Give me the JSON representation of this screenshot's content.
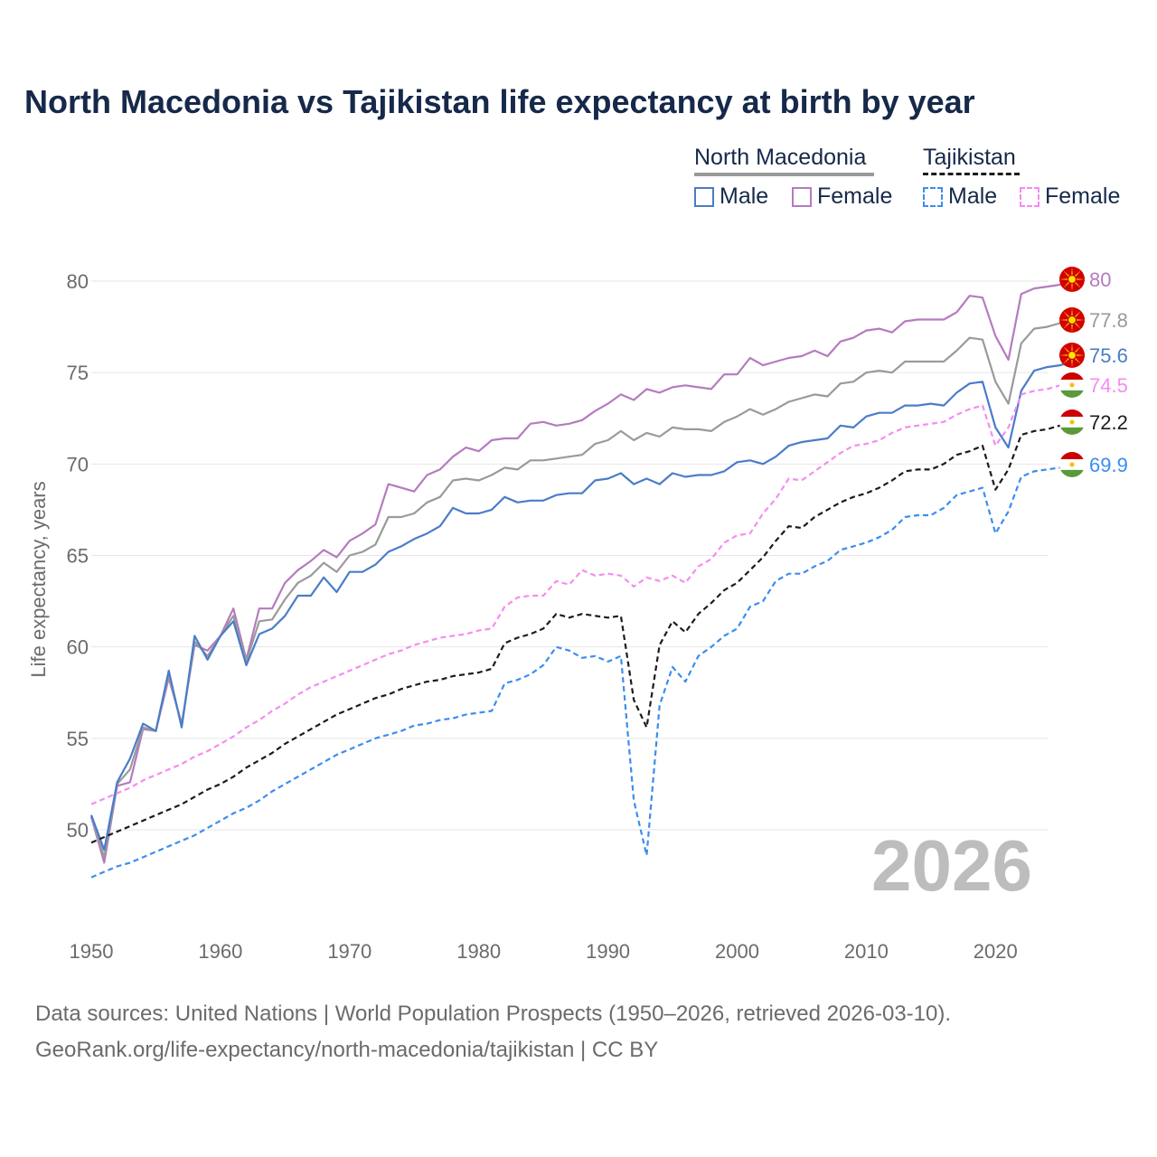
{
  "title": "North Macedonia vs Tajikistan life expectancy at birth by year",
  "legend": {
    "country_a": "North Macedonia",
    "country_b": "Tajikistan",
    "male_label": "Male",
    "female_label": "Female"
  },
  "year_badge": "2026",
  "footer": {
    "line1": "Data sources: United Nations | World Population Prospects (1950–2026, retrieved 2026-03-10).",
    "line2": "GeoRank.org/life-expectancy/north-macedonia/tajikistan | CC BY"
  },
  "colors": {
    "mk_male": "#4a7cc9",
    "mk_female": "#b57bbf",
    "mk_total": "#9a9a9a",
    "tj_male": "#3b8df0",
    "tj_female": "#f58cf0",
    "tj_total": "#1c1c1c",
    "grid": "#e6e6e6",
    "axis_text": "#6b6b6b"
  },
  "chart_data": {
    "type": "line",
    "title": "North Macedonia vs Tajikistan life expectancy at birth by year",
    "xlabel": "",
    "ylabel": "Life expectancy, years",
    "xlim": [
      1950,
      2026
    ],
    "ylim": [
      45,
      82
    ],
    "x_ticks": [
      1950,
      1960,
      1970,
      1980,
      1990,
      2000,
      2010,
      2020
    ],
    "y_ticks": [
      50,
      55,
      60,
      65,
      70,
      75,
      80
    ],
    "years": [
      1950,
      1951,
      1952,
      1953,
      1954,
      1955,
      1956,
      1957,
      1958,
      1959,
      1960,
      1961,
      1962,
      1963,
      1964,
      1965,
      1966,
      1967,
      1968,
      1969,
      1970,
      1971,
      1972,
      1973,
      1974,
      1975,
      1976,
      1977,
      1978,
      1979,
      1980,
      1981,
      1982,
      1983,
      1984,
      1985,
      1986,
      1987,
      1988,
      1989,
      1990,
      1991,
      1992,
      1993,
      1994,
      1995,
      1996,
      1997,
      1998,
      1999,
      2000,
      2001,
      2002,
      2003,
      2004,
      2005,
      2006,
      2007,
      2008,
      2009,
      2010,
      2011,
      2012,
      2013,
      2014,
      2015,
      2016,
      2017,
      2018,
      2019,
      2020,
      2021,
      2022,
      2023,
      2024,
      2025,
      2026
    ],
    "series": [
      {
        "name": "North Macedonia Female",
        "key": "mk_female",
        "dashed": false,
        "end_label": "80",
        "values": [
          50.7,
          48.2,
          52.4,
          52.6,
          55.5,
          55.4,
          58.3,
          55.8,
          60.1,
          59.8,
          60.6,
          62.1,
          59.3,
          62.1,
          62.1,
          63.5,
          64.2,
          64.7,
          65.3,
          64.9,
          65.8,
          66.2,
          66.7,
          68.9,
          68.7,
          68.5,
          69.4,
          69.7,
          70.4,
          70.9,
          70.7,
          71.3,
          71.4,
          71.4,
          72.2,
          72.3,
          72.1,
          72.2,
          72.4,
          72.9,
          73.3,
          73.8,
          73.5,
          74.1,
          73.9,
          74.2,
          74.3,
          74.2,
          74.1,
          74.9,
          74.9,
          75.8,
          75.4,
          75.6,
          75.8,
          75.9,
          76.2,
          75.9,
          76.7,
          76.9,
          77.3,
          77.4,
          77.2,
          77.8,
          77.9,
          77.9,
          77.9,
          78.3,
          79.2,
          79.1,
          77.0,
          75.7,
          79.3,
          79.6,
          79.7,
          79.8,
          80.0
        ]
      },
      {
        "name": "North Macedonia Both sexes",
        "key": "mk_total",
        "dashed": false,
        "end_label": "77.8",
        "values": [
          50.8,
          48.5,
          52.5,
          53.3,
          55.6,
          55.4,
          58.5,
          55.7,
          60.3,
          59.5,
          60.6,
          61.7,
          59.2,
          61.4,
          61.5,
          62.6,
          63.5,
          63.9,
          64.6,
          64.1,
          65.0,
          65.2,
          65.6,
          67.1,
          67.1,
          67.3,
          67.9,
          68.2,
          69.1,
          69.2,
          69.1,
          69.4,
          69.8,
          69.7,
          70.2,
          70.2,
          70.3,
          70.4,
          70.5,
          71.1,
          71.3,
          71.8,
          71.3,
          71.7,
          71.5,
          72.0,
          71.9,
          71.9,
          71.8,
          72.3,
          72.6,
          73.0,
          72.7,
          73.0,
          73.4,
          73.6,
          73.8,
          73.7,
          74.4,
          74.5,
          75.0,
          75.1,
          75.0,
          75.6,
          75.6,
          75.6,
          75.6,
          76.2,
          76.9,
          76.8,
          74.5,
          73.3,
          76.6,
          77.4,
          77.5,
          77.7,
          77.8
        ]
      },
      {
        "name": "North Macedonia Male",
        "key": "mk_male",
        "dashed": false,
        "end_label": "75.6",
        "values": [
          50.8,
          48.9,
          52.6,
          53.9,
          55.8,
          55.4,
          58.7,
          55.6,
          60.6,
          59.3,
          60.6,
          61.4,
          59.0,
          60.7,
          61.0,
          61.7,
          62.8,
          62.8,
          63.8,
          63.0,
          64.1,
          64.1,
          64.5,
          65.2,
          65.5,
          65.9,
          66.2,
          66.6,
          67.6,
          67.3,
          67.3,
          67.5,
          68.2,
          67.9,
          68.0,
          68.0,
          68.3,
          68.4,
          68.4,
          69.1,
          69.2,
          69.5,
          68.9,
          69.2,
          68.9,
          69.5,
          69.3,
          69.4,
          69.4,
          69.6,
          70.1,
          70.2,
          70.0,
          70.4,
          71.0,
          71.2,
          71.3,
          71.4,
          72.1,
          72.0,
          72.6,
          72.8,
          72.8,
          73.2,
          73.2,
          73.3,
          73.2,
          73.9,
          74.4,
          74.5,
          72.0,
          70.9,
          74.0,
          75.1,
          75.3,
          75.4,
          75.6
        ]
      },
      {
        "name": "Tajikistan Female",
        "key": "tj_female",
        "dashed": true,
        "end_label": "74.5",
        "values": [
          51.4,
          51.7,
          52.0,
          52.3,
          52.7,
          53.0,
          53.3,
          53.6,
          54.0,
          54.3,
          54.7,
          55.1,
          55.6,
          56.0,
          56.5,
          56.9,
          57.4,
          57.8,
          58.1,
          58.4,
          58.7,
          59.0,
          59.3,
          59.6,
          59.8,
          60.1,
          60.3,
          60.5,
          60.6,
          60.7,
          60.9,
          61.0,
          62.2,
          62.7,
          62.8,
          62.8,
          63.6,
          63.4,
          64.2,
          63.9,
          64.0,
          63.9,
          63.3,
          63.8,
          63.6,
          63.9,
          63.5,
          64.4,
          64.8,
          65.7,
          66.1,
          66.2,
          67.3,
          68.1,
          69.2,
          69.1,
          69.6,
          70.1,
          70.6,
          71.0,
          71.1,
          71.3,
          71.7,
          72.0,
          72.1,
          72.2,
          72.3,
          72.7,
          73.0,
          73.2,
          71.0,
          72.0,
          73.8,
          74.0,
          74.1,
          74.3,
          74.5
        ]
      },
      {
        "name": "Tajikistan Both sexes",
        "key": "tj_total",
        "dashed": true,
        "end_label": "72.2",
        "values": [
          49.3,
          49.6,
          49.9,
          50.2,
          50.5,
          50.8,
          51.1,
          51.4,
          51.8,
          52.2,
          52.5,
          52.9,
          53.4,
          53.8,
          54.2,
          54.7,
          55.1,
          55.5,
          55.9,
          56.3,
          56.6,
          56.9,
          57.2,
          57.4,
          57.7,
          57.9,
          58.1,
          58.2,
          58.4,
          58.5,
          58.6,
          58.8,
          60.2,
          60.5,
          60.7,
          61.0,
          61.8,
          61.6,
          61.8,
          61.7,
          61.6,
          61.7,
          57.1,
          55.6,
          60.1,
          61.4,
          60.8,
          61.8,
          62.4,
          63.1,
          63.5,
          64.2,
          64.9,
          65.8,
          66.6,
          66.5,
          67.1,
          67.5,
          67.9,
          68.2,
          68.4,
          68.7,
          69.1,
          69.6,
          69.7,
          69.7,
          70.0,
          70.5,
          70.7,
          71.0,
          68.6,
          69.7,
          71.6,
          71.8,
          71.9,
          72.1,
          72.2
        ]
      },
      {
        "name": "Tajikistan Male",
        "key": "tj_male",
        "dashed": true,
        "end_label": "69.9",
        "values": [
          47.4,
          47.7,
          48.0,
          48.2,
          48.5,
          48.8,
          49.1,
          49.4,
          49.7,
          50.1,
          50.5,
          50.9,
          51.2,
          51.6,
          52.1,
          52.5,
          52.9,
          53.3,
          53.7,
          54.1,
          54.4,
          54.7,
          55.0,
          55.2,
          55.4,
          55.7,
          55.8,
          56.0,
          56.1,
          56.3,
          56.4,
          56.5,
          58.0,
          58.2,
          58.5,
          59.0,
          60.0,
          59.8,
          59.4,
          59.5,
          59.2,
          59.5,
          51.6,
          48.6,
          56.8,
          58.9,
          58.1,
          59.5,
          60.0,
          60.6,
          61.0,
          62.2,
          62.5,
          63.6,
          64.0,
          64.0,
          64.4,
          64.7,
          65.3,
          65.5,
          65.7,
          66.0,
          66.4,
          67.1,
          67.2,
          67.2,
          67.6,
          68.3,
          68.5,
          68.7,
          66.2,
          67.4,
          69.3,
          69.6,
          69.7,
          69.8,
          69.9
        ]
      }
    ]
  }
}
